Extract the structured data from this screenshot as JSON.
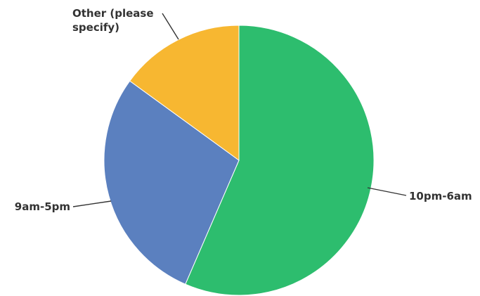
{
  "chart_data": {
    "type": "pie",
    "title": "",
    "slices": [
      {
        "label": "10pm-6am",
        "value": 56.5,
        "color": "#2dbd6e"
      },
      {
        "label": "9am-5pm",
        "value": 28.5,
        "color": "#5b80bf"
      },
      {
        "label": "Other (please specify)",
        "value": 15.0,
        "color": "#f7b731"
      }
    ],
    "label_lines": {
      "10pm-6am": [
        "10pm-6am"
      ],
      "9am-5pm": [
        "9am-5pm"
      ],
      "Other (please specify)": [
        "Other (please",
        "specify)"
      ]
    },
    "legend": "none",
    "start_angle_deg": 0,
    "direction": "clockwise"
  }
}
